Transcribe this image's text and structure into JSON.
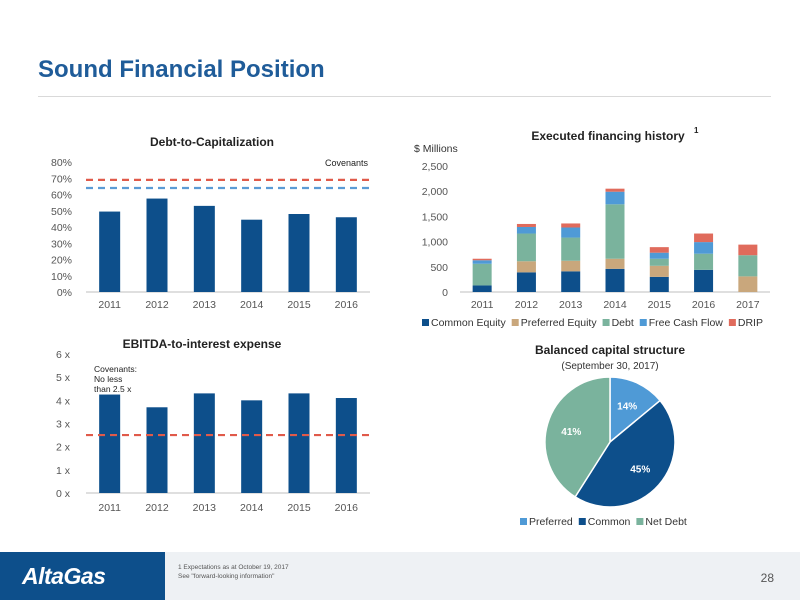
{
  "page": {
    "title": "Sound Financial Position"
  },
  "footer": {
    "logo": "AltaGas",
    "note_line1": "1 Expectations as at  October 19, 2017",
    "note_line2": "See \"forward-looking information\"",
    "page_number": "28"
  },
  "colors": {
    "common": "#0d4f8b",
    "preferred": "#c9a77c",
    "debt": "#7ab39d",
    "fcf": "#4f9ad6",
    "drip": "#e06b5c",
    "covenant_red": "#e05a4a",
    "covenant_blue": "#5b9bd5",
    "title_blue": "#1f5c99"
  },
  "chart_data": [
    {
      "type": "bar",
      "title": "Debt-to-Capitalization",
      "categories": [
        "2011",
        "2012",
        "2013",
        "2014",
        "2015",
        "2016"
      ],
      "values": [
        49.5,
        57.5,
        53,
        44.5,
        48,
        46
      ],
      "ylim": [
        0,
        80
      ],
      "yticks": [
        "0%",
        "10%",
        "20%",
        "30%",
        "40%",
        "50%",
        "60%",
        "70%",
        "80%"
      ],
      "reference_lines": [
        {
          "value": 69,
          "color": "red"
        },
        {
          "value": 64,
          "color": "blue"
        }
      ],
      "annotation": "Covenants"
    },
    {
      "type": "bar",
      "title": "EBITDA-to-interest expense",
      "categories": [
        "2011",
        "2012",
        "2013",
        "2014",
        "2015",
        "2016"
      ],
      "values": [
        4.25,
        3.7,
        4.3,
        4.0,
        4.3,
        4.1
      ],
      "ylim": [
        0,
        6
      ],
      "yticks": [
        "0 x",
        "1 x",
        "2 x",
        "3 x",
        "4 x",
        "5 x",
        "6 x"
      ],
      "reference_lines": [
        {
          "value": 2.5,
          "color": "red"
        }
      ],
      "annotation": [
        "Covenants:",
        "No less",
        "than 2.5 x"
      ]
    },
    {
      "type": "bar",
      "stacked": true,
      "title": "Executed financing history",
      "title_sup": "1",
      "ylabel": "$ Millions",
      "categories": [
        "2011",
        "2012",
        "2013",
        "2014",
        "2015",
        "2016",
        "2017"
      ],
      "ylim": [
        0,
        2500
      ],
      "yticks": [
        "0",
        "500",
        "1,000",
        "1,500",
        "2,000",
        "2,500"
      ],
      "series": [
        {
          "name": "Common Equity",
          "values": [
            130,
            390,
            410,
            460,
            300,
            440,
            0
          ]
        },
        {
          "name": "Preferred Equity",
          "values": [
            0,
            220,
            210,
            200,
            220,
            0,
            310
          ]
        },
        {
          "name": "Debt",
          "values": [
            430,
            550,
            460,
            1080,
            140,
            320,
            420
          ]
        },
        {
          "name": "Free Cash Flow",
          "values": [
            70,
            130,
            200,
            250,
            120,
            230,
            0
          ]
        },
        {
          "name": "DRIP",
          "values": [
            30,
            60,
            80,
            60,
            110,
            170,
            210
          ]
        }
      ],
      "legend": "bottom"
    },
    {
      "type": "pie",
      "title": "Balanced capital structure",
      "subtitle": "(September 30, 2017)",
      "categories": [
        "Preferred",
        "Common",
        "Net Debt"
      ],
      "values": [
        14,
        45,
        41
      ],
      "labels": [
        "14%",
        "45%",
        "41%"
      ],
      "legend": "bottom"
    }
  ]
}
